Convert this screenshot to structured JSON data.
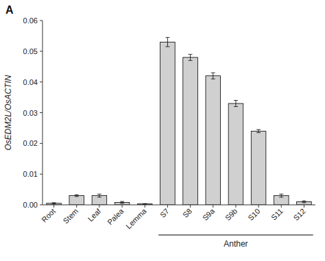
{
  "chart_data": {
    "type": "bar",
    "categories": [
      "Root",
      "Stem",
      "Leaf",
      "Palea",
      "Lemma",
      "S7",
      "S8",
      "S9a",
      "S9b",
      "S10",
      "S11",
      "S12"
    ],
    "values": [
      0.0005,
      0.003,
      0.003,
      0.0008,
      0.0003,
      0.053,
      0.048,
      0.042,
      0.033,
      0.024,
      0.003,
      0.001
    ],
    "errors": [
      0.0002,
      0.0003,
      0.0005,
      0.0003,
      0.0001,
      0.0015,
      0.001,
      0.001,
      0.001,
      0.0005,
      0.0005,
      0.0003
    ],
    "color": "#d0d0d0",
    "y_label": "OsEDM2L/OsACTIN",
    "ylim": [
      0,
      0.06
    ],
    "yticks": [
      {
        "value": 0.0,
        "label": "0.00"
      },
      0.01,
      0.02,
      0.03,
      0.04,
      0.05,
      0.06
    ],
    "grid": false,
    "annotations": [
      {
        "text": "Anther",
        "start": "S7",
        "end": "S12"
      },
      {
        "text": "A"
      }
    ]
  }
}
